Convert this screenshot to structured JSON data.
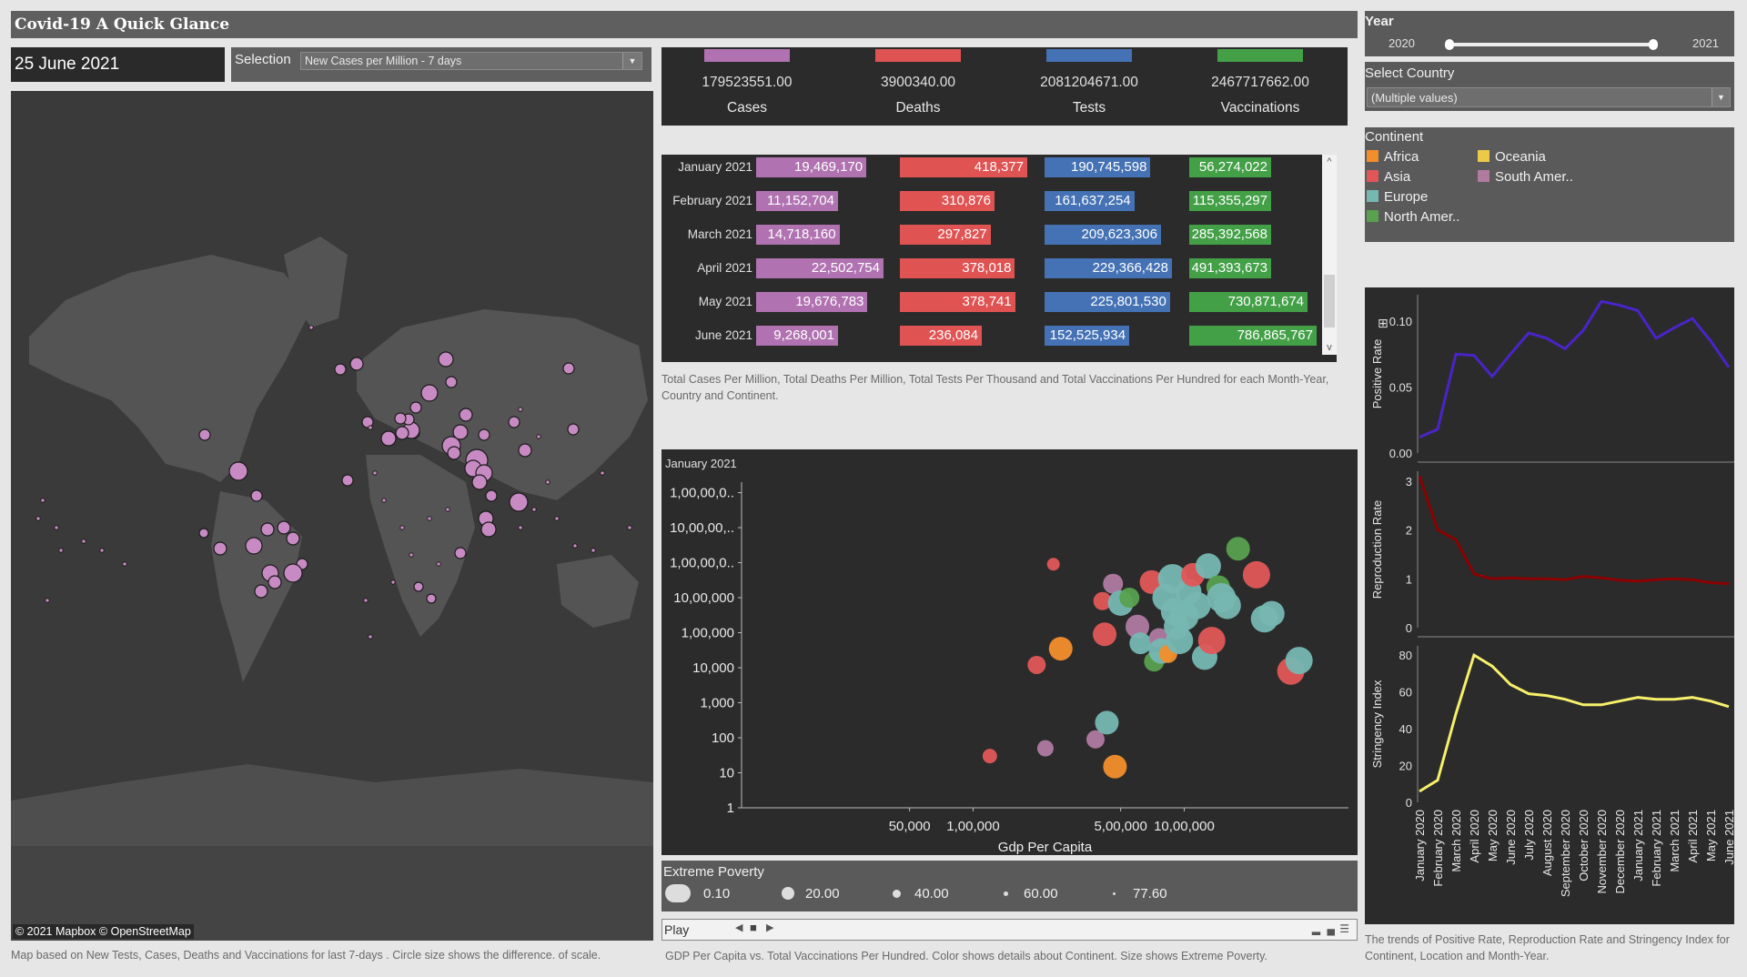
{
  "header": {
    "title": "Covid-19 A Quick Glance"
  },
  "date": "25 June 2021",
  "selection": {
    "label": "Selection",
    "value": "New Cases per Million - 7 days"
  },
  "map": {
    "attribution": "© 2021 Mapbox © OpenStreetMap",
    "caption": "Map based on New Tests, Cases, Deaths and Vaccinations for last 7-days . Circle size shows the difference.  of scale."
  },
  "totals": [
    {
      "label": "Cases",
      "value": "179523551.00",
      "color": "#b072b0"
    },
    {
      "label": "Deaths",
      "value": "3900340.00",
      "color": "#e05353"
    },
    {
      "label": "Tests",
      "value": "2081204671.00",
      "color": "#4472b4"
    },
    {
      "label": "Vaccinations",
      "value": "2467717662.00",
      "color": "#43a047"
    }
  ],
  "monthly": {
    "columns": [
      "Cases",
      "Deaths",
      "Tests",
      "Vaccinations"
    ],
    "rows": [
      {
        "month": "January 2021",
        "cases": 19469170,
        "cases_label": "19,469,170",
        "deaths": 418377,
        "deaths_label": "418,377",
        "tests": 190745598,
        "tests_label": "190,745,598",
        "vacc": 56274022,
        "vacc_label": "56,274,022"
      },
      {
        "month": "February 2021",
        "cases": 11152704,
        "cases_label": "11,152,704",
        "deaths": 310876,
        "deaths_label": "310,876",
        "tests": 161637254,
        "tests_label": "161,637,254",
        "vacc": 115355297,
        "vacc_label": "115,355,297"
      },
      {
        "month": "March 2021",
        "cases": 14718160,
        "cases_label": "14,718,160",
        "deaths": 297827,
        "deaths_label": "297,827",
        "tests": 209623306,
        "tests_label": "209,623,306",
        "vacc": 285392568,
        "vacc_label": "285,392,568"
      },
      {
        "month": "April 2021",
        "cases": 22502754,
        "cases_label": "22,502,754",
        "deaths": 378018,
        "deaths_label": "378,018",
        "tests": 229366428,
        "tests_label": "229,366,428",
        "vacc": 491393673,
        "vacc_label": "491,393,673"
      },
      {
        "month": "May 2021",
        "cases": 19676783,
        "cases_label": "19,676,783",
        "deaths": 378741,
        "deaths_label": "378,741",
        "tests": 225801530,
        "tests_label": "225,801,530",
        "vacc": 730871674,
        "vacc_label": "730,871,674"
      },
      {
        "month": "June 2021",
        "cases": 9268001,
        "cases_label": "9,268,001",
        "deaths": 236084,
        "deaths_label": "236,084",
        "tests": 152525934,
        "tests_label": "152,525,934",
        "vacc": 786865767,
        "vacc_label": "786,865,767"
      }
    ],
    "caption": "Total Cases Per Million, Total Deaths Per Million, Total Tests Per Thousand and Total Vaccinations Per Hundred for each Month-Year, Country and Continent."
  },
  "scatter": {
    "period": "January 2021",
    "caption": "GDP Per Capita vs. Total Vaccinations Per Hundred.  Color shows details about Continent.  Size shows Extreme Poverty."
  },
  "poverty_legend": {
    "title": "Extreme Poverty",
    "items": [
      "0.10",
      "20.00",
      "40.00",
      "60.00",
      "77.60"
    ]
  },
  "play": {
    "label": "Play"
  },
  "year_filter": {
    "title": "Year",
    "from": "2020",
    "to": "2021"
  },
  "country_filter": {
    "title": "Select Country",
    "value": "(Multiple values)"
  },
  "continent_legend": {
    "title": "Continent",
    "items": [
      {
        "name": "Africa",
        "color": "#f28e2b"
      },
      {
        "name": "Oceania",
        "color": "#edc948"
      },
      {
        "name": "Asia",
        "color": "#e15759"
      },
      {
        "name": "South Amer..",
        "color": "#b07aa1"
      },
      {
        "name": "Europe",
        "color": "#76b7b2"
      },
      {
        "name": "North Amer..",
        "color": "#59a14f"
      }
    ]
  },
  "trends": {
    "caption": "The trends of Positive Rate, Reproduction Rate and Stringency Index for Continent, Location and Month-Year."
  },
  "chart_data": [
    {
      "type": "scatter",
      "title": "January 2021",
      "xlabel": "Gdp Per Capita",
      "ylabel": "",
      "x_scale": "log",
      "y_scale": "log",
      "x_ticks": [
        "50,000",
        "1,00,000",
        "5,00,000",
        "10,00,000"
      ],
      "y_ticks": [
        "1",
        "10",
        "100",
        "1,000",
        "10,000",
        "1,00,000",
        "10,00,000",
        "1,00,00,0..",
        "10,00,00,..",
        "1,00,00,0.."
      ],
      "y_tick_values": [
        1,
        10,
        100,
        1000,
        10000,
        100000,
        1000000,
        10000000,
        100000000,
        1000000000
      ],
      "points": [
        {
          "x": 120000,
          "y": 30,
          "c": "Asia",
          "s": 8
        },
        {
          "x": 200000,
          "y": 12000,
          "c": "Asia",
          "s": 10
        },
        {
          "x": 240000,
          "y": 9000000,
          "c": "Asia",
          "s": 7
        },
        {
          "x": 220000,
          "y": 50,
          "c": "South Amer..",
          "s": 9
        },
        {
          "x": 260000,
          "y": 35000,
          "c": "Africa",
          "s": 13
        },
        {
          "x": 380000,
          "y": 90,
          "c": "South Amer..",
          "s": 10
        },
        {
          "x": 430000,
          "y": 270,
          "c": "Europe",
          "s": 13
        },
        {
          "x": 470000,
          "y": 15,
          "c": "Africa",
          "s": 13
        },
        {
          "x": 410000,
          "y": 800000,
          "c": "Asia",
          "s": 10
        },
        {
          "x": 420000,
          "y": 90000,
          "c": "Asia",
          "s": 13
        },
        {
          "x": 460000,
          "y": 2500000,
          "c": "South Amer..",
          "s": 11
        },
        {
          "x": 500000,
          "y": 700000,
          "c": "Europe",
          "s": 14
        },
        {
          "x": 550000,
          "y": 1000000,
          "c": "North Amer..",
          "s": 11
        },
        {
          "x": 600000,
          "y": 150000,
          "c": "South Amer..",
          "s": 13
        },
        {
          "x": 620000,
          "y": 50000,
          "c": "Europe",
          "s": 12
        },
        {
          "x": 700000,
          "y": 2800000,
          "c": "Asia",
          "s": 13
        },
        {
          "x": 720000,
          "y": 15000,
          "c": "North Amer..",
          "s": 11
        },
        {
          "x": 760000,
          "y": 70000,
          "c": "South Amer..",
          "s": 11
        },
        {
          "x": 780000,
          "y": 30000,
          "c": "Europe",
          "s": 14
        },
        {
          "x": 820000,
          "y": 1000000,
          "c": "Europe",
          "s": 15
        },
        {
          "x": 840000,
          "y": 25000,
          "c": "Africa",
          "s": 10
        },
        {
          "x": 880000,
          "y": 3500000,
          "c": "Europe",
          "s": 16
        },
        {
          "x": 900000,
          "y": 400000,
          "c": "Europe",
          "s": 15
        },
        {
          "x": 920000,
          "y": 150000,
          "c": "Europe",
          "s": 14
        },
        {
          "x": 950000,
          "y": 60000,
          "c": "Europe",
          "s": 15
        },
        {
          "x": 1000000,
          "y": 300000,
          "c": "Europe",
          "s": 16
        },
        {
          "x": 1050000,
          "y": 1500000,
          "c": "Europe",
          "s": 14
        },
        {
          "x": 1100000,
          "y": 4500000,
          "c": "Asia",
          "s": 13
        },
        {
          "x": 1150000,
          "y": 600000,
          "c": "Europe",
          "s": 15
        },
        {
          "x": 1250000,
          "y": 20000,
          "c": "Europe",
          "s": 14
        },
        {
          "x": 1300000,
          "y": 8000000,
          "c": "Europe",
          "s": 14
        },
        {
          "x": 1350000,
          "y": 60000,
          "c": "Asia",
          "s": 15
        },
        {
          "x": 1450000,
          "y": 2000000,
          "c": "North Amer..",
          "s": 13
        },
        {
          "x": 1500000,
          "y": 1000000,
          "c": "Europe",
          "s": 16
        },
        {
          "x": 1600000,
          "y": 600000,
          "c": "Europe",
          "s": 15
        },
        {
          "x": 1800000,
          "y": 25000000,
          "c": "North Amer..",
          "s": 13
        },
        {
          "x": 2200000,
          "y": 4500000,
          "c": "Asia",
          "s": 15
        },
        {
          "x": 2400000,
          "y": 250000,
          "c": "Europe",
          "s": 15
        },
        {
          "x": 2600000,
          "y": 350000,
          "c": "Europe",
          "s": 14
        },
        {
          "x": 3200000,
          "y": 8000,
          "c": "Asia",
          "s": 15
        },
        {
          "x": 3500000,
          "y": 16000,
          "c": "Europe",
          "s": 15
        }
      ]
    },
    {
      "type": "line",
      "months": [
        "January 2020",
        "February 2020",
        "March 2020",
        "April 2020",
        "May 2020",
        "June 2020",
        "July 2020",
        "August 2020",
        "September 2020",
        "October 2020",
        "November 2020",
        "December 2020",
        "January 2021",
        "February 2021",
        "March 2021",
        "April 2021",
        "May 2021",
        "June 2021"
      ],
      "series": [
        {
          "name": "Positive Rate",
          "color": "#4a24c8",
          "ylim": [
            0,
            0.12
          ],
          "ticks": [
            "0.00",
            "0.05",
            "0.10"
          ],
          "tick_values": [
            0,
            0.05,
            0.1
          ],
          "values": [
            0.012,
            0.018,
            0.075,
            0.074,
            0.058,
            0.075,
            0.091,
            0.087,
            0.079,
            0.093,
            0.115,
            0.112,
            0.108,
            0.087,
            0.095,
            0.102,
            0.085,
            0.065
          ]
        },
        {
          "name": "Reproduction Rate",
          "color": "#8b0000",
          "ylim": [
            0,
            3.2
          ],
          "ticks": [
            "0",
            "1",
            "2",
            "3"
          ],
          "tick_values": [
            0,
            1,
            2,
            3
          ],
          "values": [
            3.1,
            2.0,
            1.8,
            1.1,
            1.0,
            1.02,
            1.0,
            1.0,
            0.98,
            1.05,
            1.02,
            0.97,
            0.95,
            0.98,
            1.0,
            0.98,
            0.92,
            0.9
          ]
        },
        {
          "name": "Stringency Index",
          "color": "#f6f06a",
          "ylim": [
            0,
            85
          ],
          "ticks": [
            "0",
            "20",
            "40",
            "60",
            "80"
          ],
          "tick_values": [
            0,
            20,
            40,
            60,
            80
          ],
          "values": [
            6,
            12,
            48,
            80,
            74,
            64,
            59,
            58,
            56,
            53,
            53,
            55,
            57,
            56,
            56,
            57,
            55,
            52
          ]
        }
      ]
    }
  ]
}
